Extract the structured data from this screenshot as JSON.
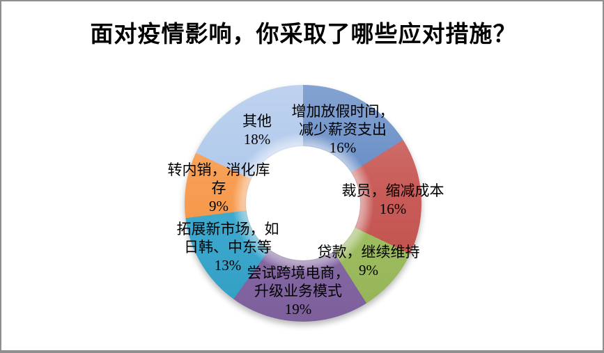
{
  "page": {
    "background": "#FFFFFF",
    "border_color": "#8F8F8F"
  },
  "chart_data": {
    "type": "pie",
    "subtype": "donut",
    "title": "面对疫情影响，你采取了哪些应对措施？",
    "hole_ratio": 0.48,
    "legend_position": "none",
    "label_style": "category-name-and-percentage",
    "start_angle_deg": 0,
    "direction": "clockwise",
    "segments": [
      {
        "label": "增加放假时间，减少薪资支出",
        "percent": 16,
        "color": "#5B84C2",
        "lines": [
          "增加放假时间，",
          "减少薪资支出",
          "16%"
        ]
      },
      {
        "label": "裁员，缩减成本",
        "percent": 16,
        "color": "#C6524E",
        "lines": [
          "裁员，缩减成本",
          "16%"
        ]
      },
      {
        "label": "贷款，继续维持",
        "percent": 9,
        "color": "#9DBD5B",
        "lines": [
          "贷款，继续维持",
          "9%"
        ]
      },
      {
        "label": "尝试跨境电商，升级业务模式",
        "percent": 19,
        "color": "#8465A5",
        "lines": [
          "尝试跨境电商，",
          "升级业务模式",
          "19%"
        ]
      },
      {
        "label": "拓展新市场，如日韩、中东等",
        "percent": 13,
        "color": "#35A7CE",
        "lines": [
          "拓展新市场，如",
          "日韩、中东等",
          "13%"
        ]
      },
      {
        "label": "转内销，消化库存",
        "percent": 9,
        "color": "#F79646",
        "lines": [
          "转内销，消化库",
          "存",
          "9%"
        ]
      },
      {
        "label": "其他",
        "percent": 18,
        "color": "#A9C4EA",
        "lines": [
          "其他",
          "18%"
        ]
      }
    ]
  }
}
